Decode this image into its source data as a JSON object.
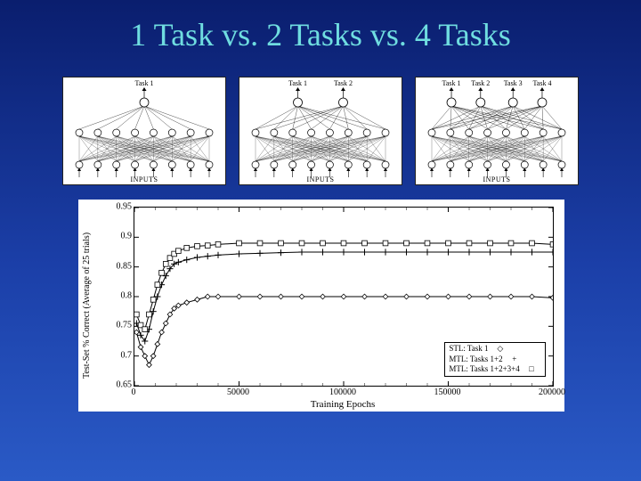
{
  "title": "1 Task vs. 2 Tasks vs. 4 Tasks",
  "colors": {
    "title_text": "#6fdde0",
    "panel_bg": "#ffffff",
    "axis": "#000000",
    "marker_stroke": "#000000",
    "marker_fill": "#ffffff"
  },
  "networks": [
    {
      "id": "net-1task",
      "task_labels": [
        "Task 1"
      ],
      "n_outputs": 1,
      "inputs_label": "INPUTS"
    },
    {
      "id": "net-2task",
      "task_labels": [
        "Task 1",
        "Task 2"
      ],
      "n_outputs": 2,
      "inputs_label": "INPUTS"
    },
    {
      "id": "net-4task",
      "task_labels": [
        "Task 1",
        "Task 2",
        "Task 3",
        "Task 4"
      ],
      "n_outputs": 4,
      "inputs_label": "INPUTS"
    }
  ],
  "chart": {
    "type": "line",
    "ylabel": "Test-Set % Correct (Average of 25 trials)",
    "xlabel": "Training Epochs",
    "xlim": [
      0,
      200000
    ],
    "ylim": [
      0.65,
      0.95
    ],
    "xticks": [
      0,
      50000,
      100000,
      150000,
      200000
    ],
    "yticks": [
      0.65,
      0.7,
      0.75,
      0.8,
      0.85,
      0.9,
      0.95
    ],
    "minor_ticks": true,
    "background_color": "#ffffff",
    "axis_color": "#000000",
    "title_fontsize": 10,
    "label_fontsize": 10,
    "series": [
      {
        "name": "STL: Task 1",
        "marker": "diamond",
        "line_color": "#000000",
        "line_width": 1,
        "marker_size": 4,
        "marker_fill": "#ffffff",
        "x": [
          1000,
          3000,
          5000,
          7000,
          9000,
          11000,
          13000,
          15000,
          17000,
          19000,
          21000,
          25000,
          30000,
          35000,
          40000,
          50000,
          60000,
          70000,
          80000,
          90000,
          100000,
          110000,
          120000,
          130000,
          140000,
          150000,
          160000,
          170000,
          180000,
          190000,
          200000
        ],
        "y": [
          0.74,
          0.715,
          0.7,
          0.685,
          0.7,
          0.72,
          0.74,
          0.755,
          0.77,
          0.78,
          0.785,
          0.79,
          0.795,
          0.8,
          0.8,
          0.8,
          0.8,
          0.8,
          0.8,
          0.8,
          0.8,
          0.8,
          0.8,
          0.8,
          0.8,
          0.8,
          0.8,
          0.8,
          0.8,
          0.8,
          0.798
        ]
      },
      {
        "name": "MTL: Tasks 1+2",
        "marker": "plus",
        "line_color": "#000000",
        "line_width": 1,
        "marker_size": 5,
        "marker_fill": "#000000",
        "x": [
          1000,
          3000,
          5000,
          7000,
          9000,
          11000,
          13000,
          15000,
          17000,
          19000,
          21000,
          25000,
          30000,
          35000,
          40000,
          50000,
          60000,
          70000,
          80000,
          90000,
          100000,
          110000,
          120000,
          130000,
          140000,
          150000,
          160000,
          170000,
          180000,
          190000,
          200000
        ],
        "y": [
          0.755,
          0.735,
          0.725,
          0.745,
          0.775,
          0.8,
          0.82,
          0.835,
          0.847,
          0.855,
          0.858,
          0.862,
          0.866,
          0.868,
          0.87,
          0.872,
          0.873,
          0.874,
          0.875,
          0.875,
          0.875,
          0.875,
          0.875,
          0.875,
          0.875,
          0.875,
          0.875,
          0.875,
          0.875,
          0.875,
          0.875
        ]
      },
      {
        "name": "MTL: Tasks 1+2+3+4",
        "marker": "square",
        "line_color": "#000000",
        "line_width": 1,
        "marker_size": 4,
        "marker_fill": "#ffffff",
        "x": [
          1000,
          3000,
          5000,
          7000,
          9000,
          11000,
          13000,
          15000,
          17000,
          19000,
          21000,
          25000,
          30000,
          35000,
          40000,
          50000,
          60000,
          70000,
          80000,
          90000,
          100000,
          110000,
          120000,
          130000,
          140000,
          150000,
          160000,
          170000,
          180000,
          190000,
          200000
        ],
        "y": [
          0.77,
          0.752,
          0.745,
          0.77,
          0.795,
          0.82,
          0.84,
          0.855,
          0.865,
          0.872,
          0.877,
          0.882,
          0.885,
          0.886,
          0.888,
          0.89,
          0.89,
          0.89,
          0.89,
          0.89,
          0.89,
          0.89,
          0.89,
          0.89,
          0.89,
          0.89,
          0.89,
          0.89,
          0.89,
          0.89,
          0.888
        ]
      }
    ],
    "legend": {
      "position": "lower-right",
      "items": [
        "STL: Task 1",
        "MTL: Tasks 1+2",
        "MTL: Tasks 1+2+3+4"
      ],
      "markers": [
        "◇",
        "+",
        "□"
      ]
    }
  }
}
